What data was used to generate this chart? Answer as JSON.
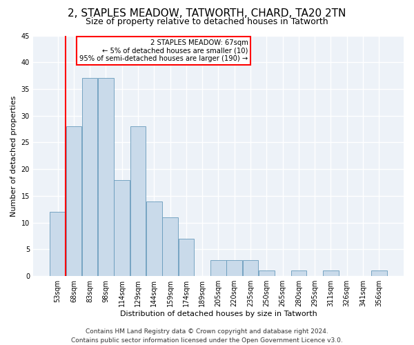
{
  "title": "2, STAPLES MEADOW, TATWORTH, CHARD, TA20 2TN",
  "subtitle": "Size of property relative to detached houses in Tatworth",
  "xlabel": "Distribution of detached houses by size in Tatworth",
  "ylabel": "Number of detached properties",
  "bar_color": "#c9daea",
  "bar_edge_color": "#6699bb",
  "background_color": "#edf2f8",
  "annotation_line1": "2 STAPLES MEADOW: 67sqm",
  "annotation_line2": "← 5% of detached houses are smaller (10)",
  "annotation_line3": "95% of semi-detached houses are larger (190) →",
  "annotation_box_color": "white",
  "annotation_box_edge": "red",
  "marker_line_color": "red",
  "categories": [
    "53sqm",
    "68sqm",
    "83sqm",
    "98sqm",
    "114sqm",
    "129sqm",
    "144sqm",
    "159sqm",
    "174sqm",
    "189sqm",
    "205sqm",
    "220sqm",
    "235sqm",
    "250sqm",
    "265sqm",
    "280sqm",
    "295sqm",
    "311sqm",
    "326sqm",
    "341sqm",
    "356sqm"
  ],
  "values": [
    12,
    28,
    37,
    37,
    18,
    28,
    14,
    11,
    7,
    0,
    3,
    3,
    3,
    1,
    0,
    1,
    0,
    1,
    0,
    0,
    1
  ],
  "ylim": [
    0,
    45
  ],
  "yticks": [
    0,
    5,
    10,
    15,
    20,
    25,
    30,
    35,
    40,
    45
  ],
  "title_fontsize": 11,
  "subtitle_fontsize": 9,
  "xlabel_fontsize": 8,
  "ylabel_fontsize": 8,
  "tick_fontsize": 7,
  "footer_text": "Contains HM Land Registry data © Crown copyright and database right 2024.\nContains public sector information licensed under the Open Government Licence v3.0.",
  "footer_fontsize": 6.5
}
